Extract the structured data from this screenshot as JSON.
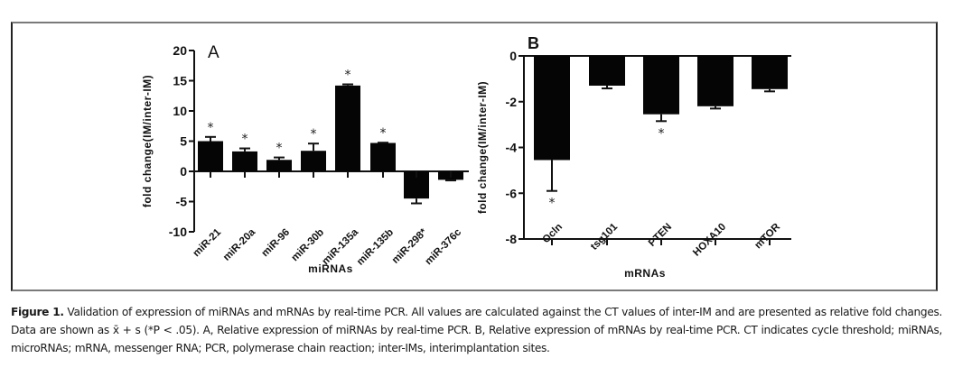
{
  "figure": {
    "caption_label": "Figure 1.",
    "caption_text": " Validation of expression of miRNAs and mRNAs by real-time PCR. All values are calculated against the CT values of inter-IM and are presented as relative fold changes. Data are shown as x̄ + s (*P < .05). A, Relative expression of miRNAs by real-time PCR. B, Relative expression of mRNAs by real-time PCR. CT indicates cycle threshold; miRNAs, microRNAs; mRNA, messenger RNA; PCR, polymerase chain reaction; inter-IMs, interimplantation sites."
  },
  "chart_data": [
    {
      "type": "bar",
      "panel": "A",
      "title": "",
      "xlabel": "miRNAs",
      "ylabel": "fold change(IM/inter-IM)",
      "ylim": [
        -10,
        20
      ],
      "yticks": [
        -10,
        -5,
        0,
        5,
        10,
        15,
        20
      ],
      "ytick_labels": [
        "-10",
        "-5",
        "0",
        "5",
        "10",
        "15",
        "20"
      ],
      "grid": false,
      "categories": [
        "miR-21",
        "miR-20a",
        "miR-96",
        "miR-30b",
        "miR-135a",
        "miR-135b",
        "miR-298*",
        "miR-376c"
      ],
      "values": [
        5.0,
        3.3,
        1.9,
        3.4,
        14.2,
        4.7,
        -4.5,
        -1.4
      ],
      "error_upper": [
        0.7,
        0.5,
        0.4,
        1.2,
        0.2,
        0.05,
        0.8,
        0.1
      ],
      "significant": [
        true,
        true,
        true,
        true,
        true,
        true,
        false,
        false
      ],
      "significance_marker": "*"
    },
    {
      "type": "bar",
      "panel": "B",
      "title": "",
      "xlabel": "mRNAs",
      "ylabel": "fold change(IM/inter-IM)",
      "ylim": [
        -8,
        0
      ],
      "yticks": [
        -8,
        -6,
        -4,
        -2,
        0
      ],
      "ytick_labels": [
        "-8",
        "-6",
        "-4",
        "-2",
        "0"
      ],
      "grid": false,
      "categories": [
        "Ocln",
        "tsg101",
        "PTEN",
        "HOXA10",
        "mTOR"
      ],
      "values": [
        -4.55,
        -1.3,
        -2.55,
        -2.2,
        -1.45
      ],
      "error_upper": [
        1.35,
        0.12,
        0.3,
        0.1,
        0.1
      ],
      "significant": [
        true,
        false,
        true,
        false,
        false
      ],
      "significance_marker": "*"
    }
  ]
}
